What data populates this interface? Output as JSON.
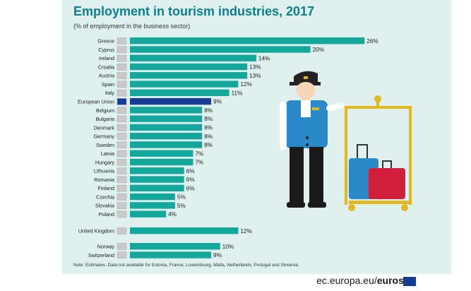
{
  "header": {
    "title": "Employment in tourism industries, 2017",
    "subtitle": "(% of employment in the business sector)"
  },
  "note": "Note: Estimates. Data not available for Estonia, France, Luxembourg, Malta, Netherlands, Portugal and Slovenia.",
  "footer": {
    "site": "ec.europa.eu/",
    "brand": "eurostat"
  },
  "colors": {
    "bar": "#14a89d",
    "eu_bar": "#173c96",
    "title": "#0c7f8f",
    "background": "#dff0ef"
  },
  "chart_data": {
    "type": "bar",
    "orientation": "horizontal",
    "unit": "%",
    "grid": false,
    "categories": [
      "Greece",
      "Cyprus",
      "Ireland",
      "Croatia",
      "Austria",
      "Spain",
      "Italy",
      "European Union",
      "Belgium",
      "Bulgaria",
      "Denmark",
      "Germany",
      "Sweden",
      "Latvia",
      "Hungary",
      "Lithuania",
      "Romania",
      "Finland",
      "Czechia",
      "Slovakia",
      "Poland",
      "United Kingdom",
      "Norway",
      "Switzerland"
    ],
    "values": [
      26,
      20,
      14,
      13,
      13,
      12,
      11,
      9,
      8,
      8,
      8,
      8,
      8,
      7,
      7,
      6,
      6,
      6,
      5,
      5,
      4,
      12,
      10,
      9
    ],
    "highlight": "European Union"
  }
}
